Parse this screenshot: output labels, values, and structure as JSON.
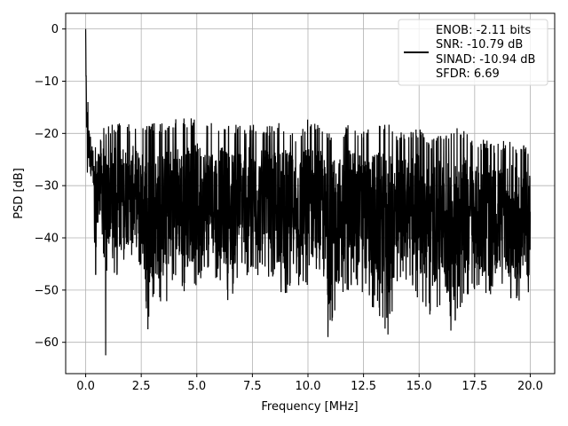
{
  "chart_data": {
    "type": "line",
    "title": "",
    "xlabel": "Frequency [MHz]",
    "ylabel": "PSD [dB]",
    "xlim": [
      -0.9,
      21.1
    ],
    "ylim": [
      -66,
      3
    ],
    "xticks": [
      0.0,
      2.5,
      5.0,
      7.5,
      10.0,
      12.5,
      15.0,
      17.5,
      20.0
    ],
    "xtick_labels": [
      "0.0",
      "2.5",
      "5.0",
      "7.5",
      "10.0",
      "12.5",
      "15.0",
      "17.5",
      "20.0"
    ],
    "yticks": [
      0,
      -10,
      -20,
      -30,
      -40,
      -50,
      -60
    ],
    "ytick_labels": [
      "0",
      "−10",
      "−20",
      "−30",
      "−40",
      "−50",
      "−60"
    ],
    "grid": true,
    "legend_position": "top-right",
    "line_color": "#000000",
    "series": [
      {
        "x": [
          0.0,
          0.02,
          0.05,
          0.1,
          0.2,
          0.3,
          0.45,
          0.6,
          0.8,
          0.9,
          1.0,
          1.5,
          2.0,
          2.5,
          2.8,
          3.0,
          3.5,
          4.0,
          4.5,
          5.0,
          5.5,
          6.0,
          6.5,
          7.0,
          7.5,
          8.0,
          8.5,
          9.0,
          9.5,
          10.0,
          10.5,
          10.9,
          11.5,
          12.0,
          12.5,
          13.0,
          13.6,
          14.0,
          14.5,
          15.0,
          15.5,
          16.0,
          16.4,
          17.0,
          17.5,
          18.0,
          18.5,
          19.0,
          19.5,
          20.0
        ],
        "y": [
          0,
          -9,
          -16,
          -14,
          -22,
          -25,
          -47,
          -24,
          -43,
          -62.5,
          -30,
          -38,
          -28,
          -35,
          -57.5,
          -31,
          -41,
          -33,
          -38,
          -30,
          -37,
          -32,
          -41,
          -30,
          -39,
          -29,
          -46,
          -31,
          -40,
          -26,
          -42,
          -59,
          -33,
          -44,
          -30,
          -51,
          -58.5,
          -29,
          -37,
          -31,
          -54,
          -30,
          -55,
          -33,
          -40,
          -29,
          -45,
          -31,
          -52,
          -35
        ],
        "upper": [
          0,
          -8.5,
          -13.5,
          -15,
          -18,
          -22,
          -22,
          -18,
          -18,
          -19,
          -18,
          -18,
          -18,
          -19,
          -18,
          -18,
          -18,
          -17,
          -17,
          -17,
          -18,
          -18,
          -17.5,
          -18.5,
          -18,
          -19,
          -18,
          -18,
          -20,
          -17,
          -18,
          -20,
          -19,
          -18,
          -19,
          -18,
          -18,
          -20,
          -19,
          -19,
          -21,
          -20,
          -19,
          -19,
          -22,
          -21,
          -22,
          -21,
          -22,
          -22
        ],
        "lower": [
          0,
          -13,
          -30,
          -28,
          -29,
          -31,
          -47,
          -35,
          -43,
          -62.5,
          -46,
          -48,
          -45,
          -47,
          -57.5,
          -53,
          -54,
          -48,
          -51,
          -49,
          -47,
          -48,
          -53,
          -47,
          -48,
          -47,
          -50,
          -51,
          -49,
          -51,
          -48,
          -59,
          -53,
          -49,
          -51,
          -54,
          -58.5,
          -51,
          -48,
          -52,
          -55,
          -53,
          -60,
          -53,
          -50,
          -53,
          -51,
          -52,
          -54,
          -52
        ]
      }
    ],
    "legend": {
      "line_1": "ENOB: -2.11 bits",
      "line_2": "SNR: -10.79 dB",
      "line_3": "SINAD: -10.94 dB",
      "line_4": "SFDR: 6.69"
    }
  }
}
